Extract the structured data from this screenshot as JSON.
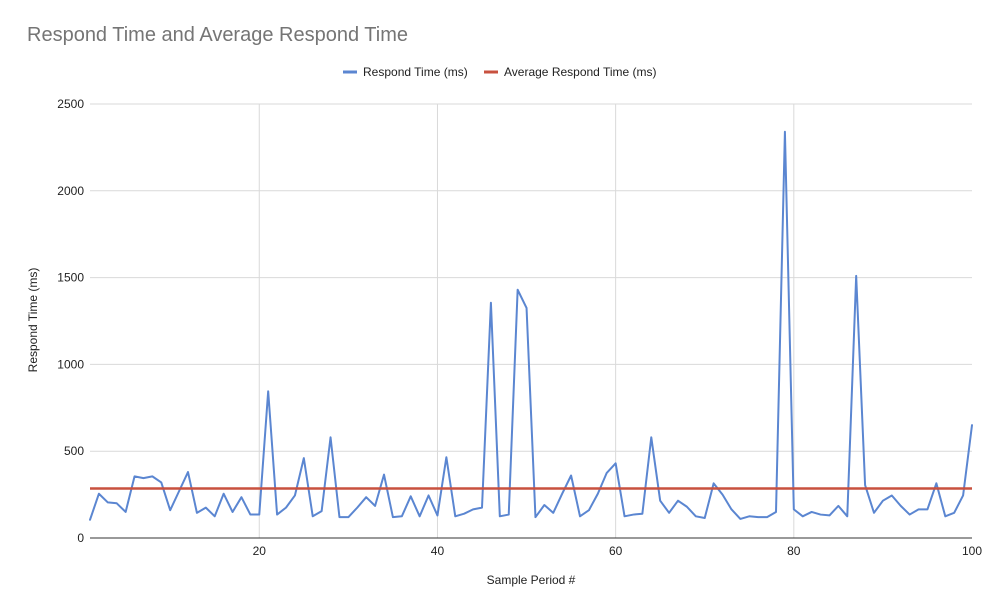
{
  "chart_data": {
    "type": "line",
    "title": "Respond Time and Average Respond Time",
    "xlabel": "Sample Period #",
    "ylabel": "Respond Time (ms)",
    "xlim": [
      1,
      100
    ],
    "ylim": [
      0,
      2500
    ],
    "x_ticks": [
      20,
      40,
      60,
      80,
      100
    ],
    "y_ticks": [
      0,
      500,
      1000,
      1500,
      2000,
      2500
    ],
    "grid": true,
    "legend_position": "top-center",
    "series": [
      {
        "name": "Respond Time (ms)",
        "color": "#5b86d1",
        "values": [
          105,
          255,
          205,
          200,
          150,
          355,
          345,
          355,
          320,
          160,
          270,
          380,
          145,
          175,
          125,
          255,
          150,
          235,
          135,
          135,
          845,
          135,
          175,
          245,
          460,
          125,
          155,
          580,
          120,
          120,
          175,
          235,
          185,
          365,
          120,
          125,
          240,
          125,
          245,
          130,
          465,
          125,
          140,
          165,
          175,
          1355,
          125,
          135,
          1430,
          1325,
          120,
          190,
          145,
          255,
          360,
          125,
          160,
          255,
          375,
          430,
          125,
          135,
          140,
          580,
          215,
          145,
          215,
          180,
          125,
          115,
          315,
          250,
          165,
          110,
          125,
          120,
          120,
          150,
          2340,
          165,
          125,
          150,
          135,
          130,
          185,
          125,
          1510,
          305,
          145,
          215,
          245,
          185,
          135,
          165,
          165,
          315,
          125,
          145,
          245,
          650
        ]
      },
      {
        "name": "Average Respond Time (ms)",
        "color": "#c8513f",
        "value": 285
      }
    ]
  }
}
